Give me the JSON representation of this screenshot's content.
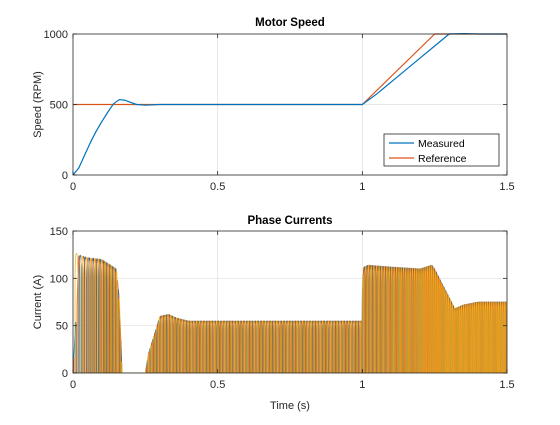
{
  "chart_data": [
    {
      "type": "line",
      "title": "Motor Speed",
      "xlabel": "",
      "ylabel": "Speed (RPM)",
      "xlim": [
        0,
        1.5
      ],
      "ylim": [
        0,
        1000
      ],
      "xticks": [
        0,
        0.5,
        1,
        1.5
      ],
      "xtick_labels": [
        "0",
        "0.5",
        "1",
        "1.5"
      ],
      "yticks": [
        0,
        500,
        1000
      ],
      "ytick_labels": [
        "0",
        "500",
        "1000"
      ],
      "grid": true,
      "legend": "bottom-right",
      "series": [
        {
          "name": "Measured",
          "color": "#0072BD",
          "x": [
            0,
            0.02,
            0.04,
            0.06,
            0.08,
            0.1,
            0.12,
            0.14,
            0.16,
            0.18,
            0.2,
            0.22,
            0.25,
            0.3,
            0.35,
            0.4,
            0.6,
            0.8,
            1.0,
            1.02,
            1.05,
            1.1,
            1.15,
            1.2,
            1.25,
            1.3,
            1.35,
            1.4,
            1.45,
            1.5
          ],
          "y": [
            0,
            50,
            140,
            230,
            310,
            380,
            445,
            505,
            535,
            530,
            515,
            500,
            495,
            500,
            500,
            500,
            500,
            500,
            500,
            530,
            575,
            660,
            745,
            830,
            915,
            1000,
            1003,
            1000,
            1000,
            1000
          ]
        },
        {
          "name": "Reference",
          "color": "#D95319",
          "x": [
            0,
            1.0,
            1.25,
            1.5
          ],
          "y": [
            500,
            500,
            1000,
            1000
          ]
        }
      ]
    },
    {
      "type": "line",
      "title": "Phase Currents",
      "xlabel": "Time (s)",
      "ylabel": "Current (A)",
      "xlim": [
        0,
        1.5
      ],
      "ylim": [
        0,
        150
      ],
      "xticks": [
        0,
        0.5,
        1,
        1.5
      ],
      "xtick_labels": [
        "0",
        "0.5",
        "1",
        "1.5"
      ],
      "yticks": [
        0,
        50,
        100,
        150
      ],
      "ytick_labels": [
        "0",
        "50",
        "100",
        "150"
      ],
      "grid": true,
      "series": [
        {
          "color": "#0072BD",
          "envelope": {
            "t": [
              0,
              0.02,
              0.05,
              0.1,
              0.15,
              0.16,
              0.17,
              0.25,
              0.26,
              0.28,
              0.3,
              0.33,
              0.36,
              0.4,
              0.6,
              0.8,
              0.999,
              1.0,
              1.005,
              1.02,
              1.1,
              1.2,
              1.24,
              1.25,
              1.27,
              1.3,
              1.32,
              1.35,
              1.4,
              1.45,
              1.5
            ],
            "amp": [
              0,
              125,
              122,
              120,
              110,
              80,
              0,
              0,
              20,
              40,
              60,
              62,
              58,
              55,
              55,
              55,
              55,
              100,
              112,
              114,
              112,
              110,
              114,
              110,
              98,
              80,
              68,
              72,
              75,
              75,
              75
            ]
          }
        },
        {
          "color": "#D95319",
          "envelope": {
            "t": [
              0,
              0.02,
              0.05,
              0.1,
              0.15,
              0.16,
              0.17,
              0.25,
              0.26,
              0.28,
              0.3,
              0.33,
              0.36,
              0.4,
              0.6,
              0.8,
              0.999,
              1.0,
              1.005,
              1.02,
              1.1,
              1.2,
              1.24,
              1.25,
              1.27,
              1.3,
              1.32,
              1.35,
              1.4,
              1.45,
              1.5
            ],
            "amp": [
              0,
              125,
              122,
              120,
              110,
              80,
              0,
              0,
              20,
              40,
              60,
              62,
              58,
              55,
              55,
              55,
              55,
              100,
              112,
              114,
              112,
              110,
              114,
              110,
              98,
              80,
              68,
              72,
              75,
              75,
              75
            ]
          }
        },
        {
          "color": "#EDB120",
          "envelope": {
            "t": [
              0,
              0.005,
              0.02,
              0.05,
              0.1,
              0.15,
              0.16,
              0.17,
              0.25,
              0.26,
              0.28,
              0.3,
              0.33,
              0.36,
              0.4,
              0.6,
              0.8,
              0.999,
              1.0,
              1.005,
              1.02,
              1.1,
              1.2,
              1.24,
              1.25,
              1.27,
              1.3,
              1.32,
              1.35,
              1.4,
              1.45,
              1.5
            ],
            "amp": [
              128,
              128,
              125,
              122,
              120,
              110,
              80,
              0,
              0,
              20,
              40,
              60,
              62,
              58,
              55,
              55,
              55,
              55,
              100,
              112,
              114,
              112,
              110,
              114,
              110,
              98,
              80,
              68,
              72,
              75,
              75,
              75
            ]
          }
        }
      ]
    }
  ]
}
